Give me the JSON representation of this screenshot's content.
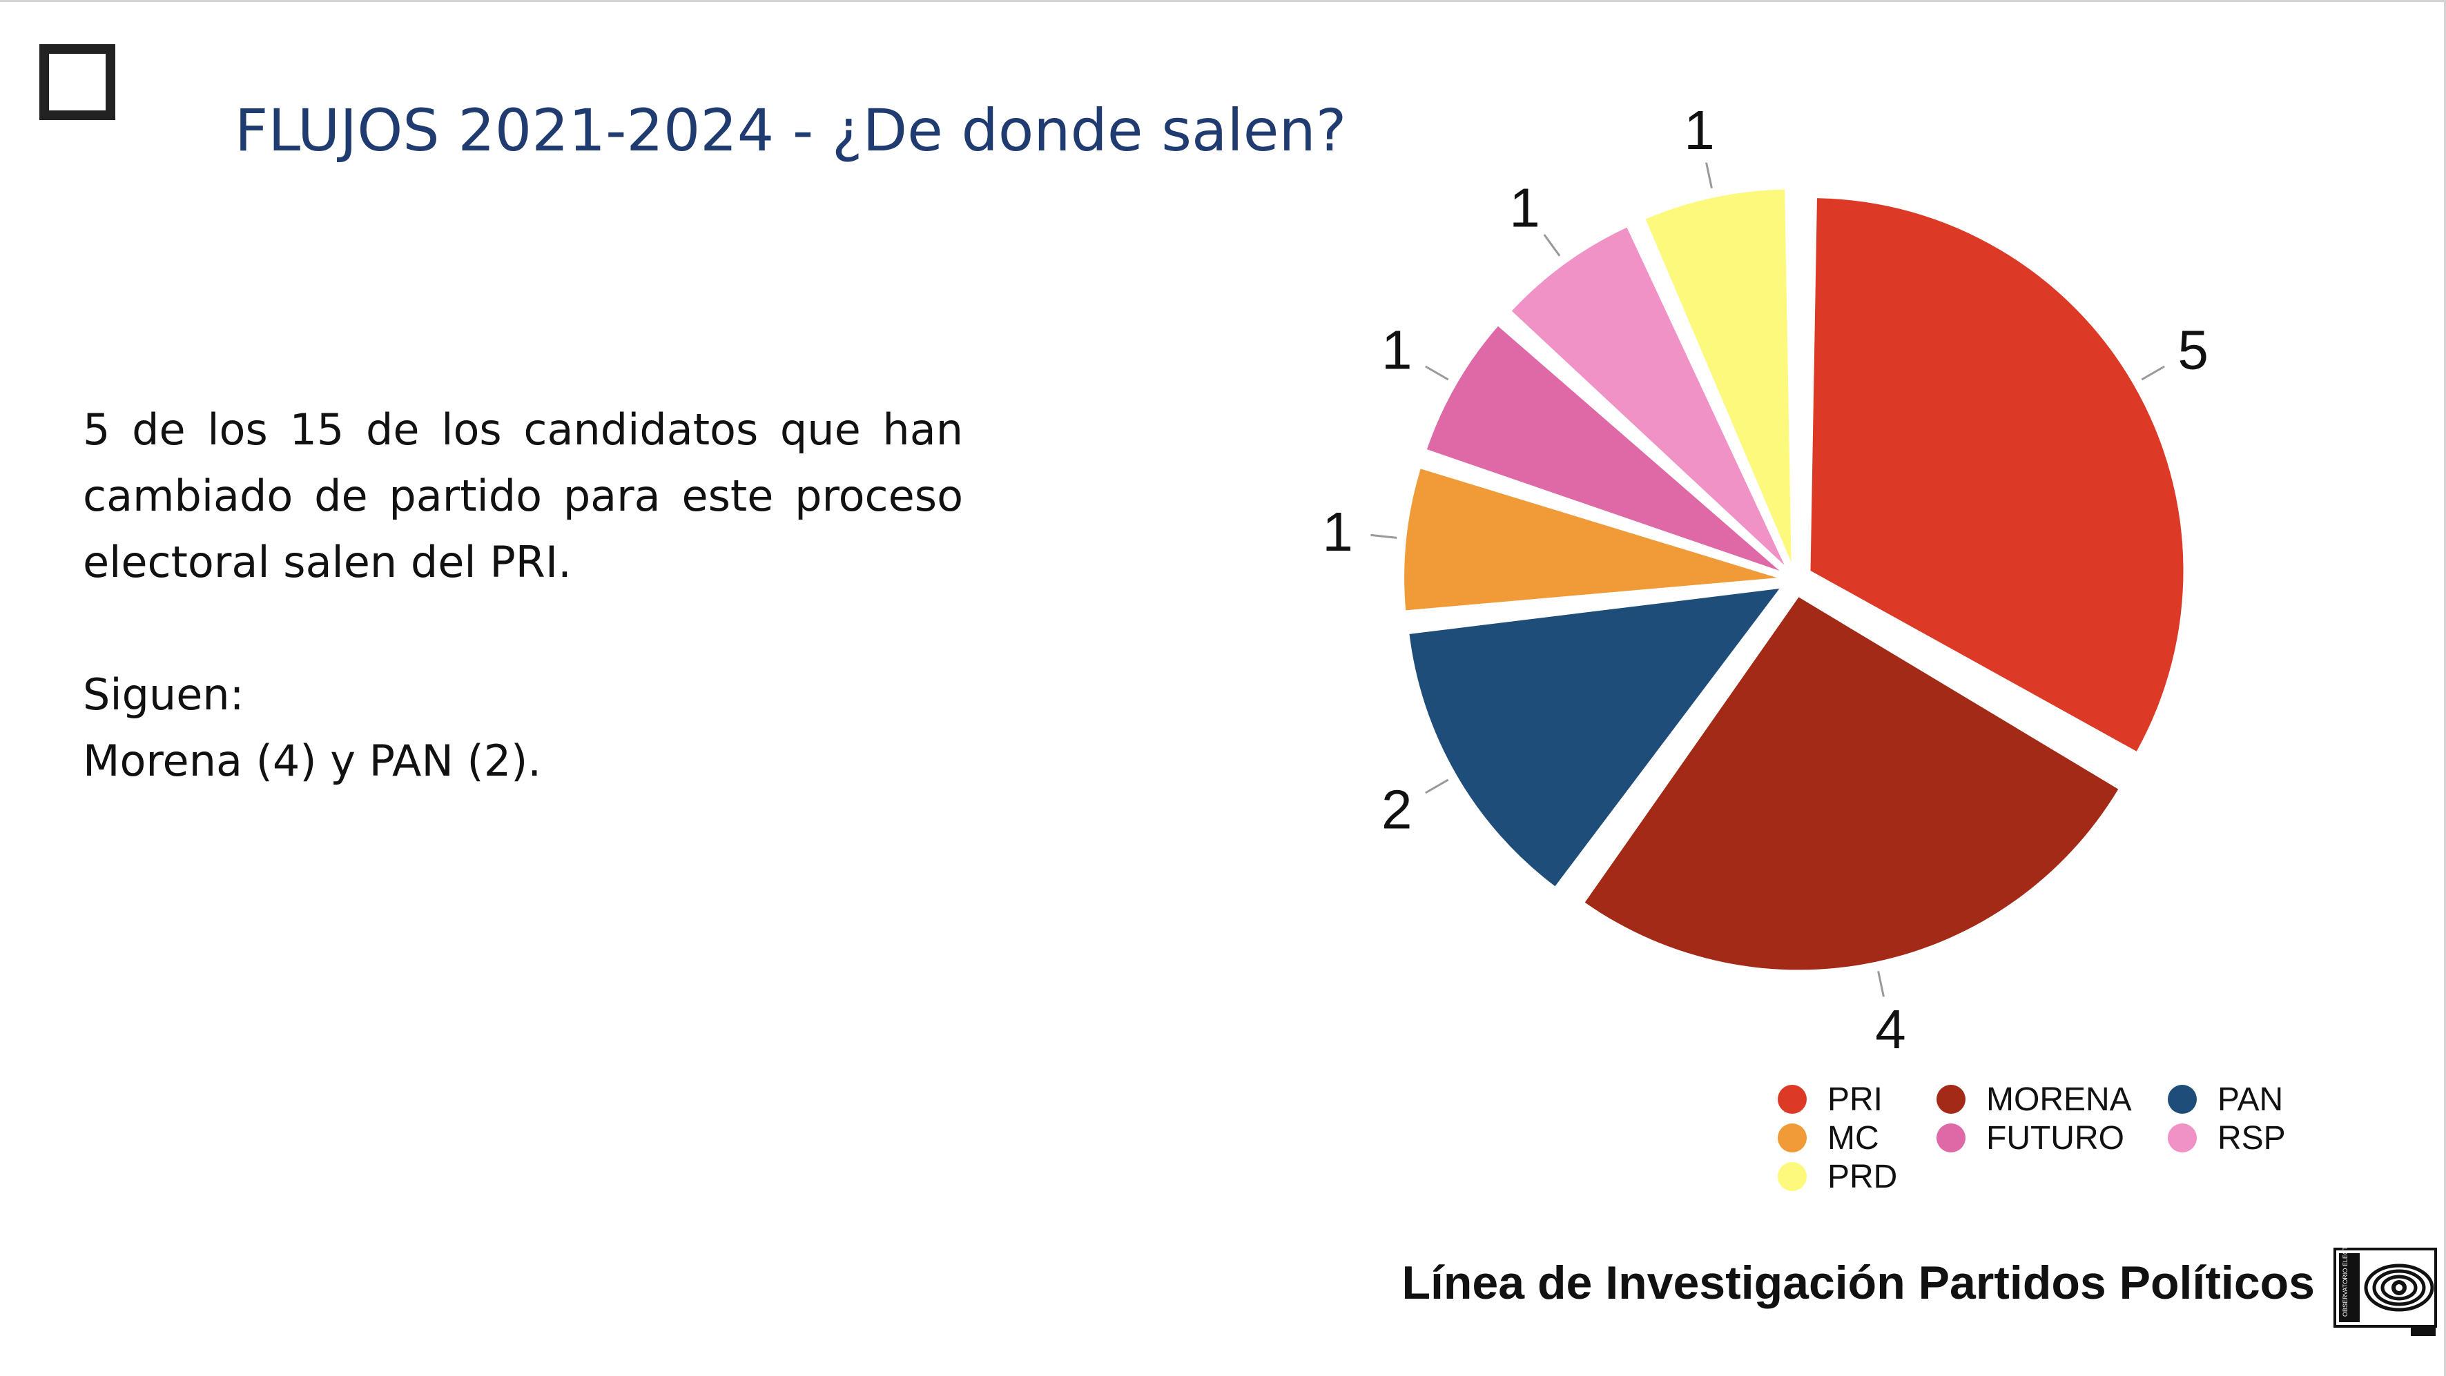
{
  "slide": {
    "title": "FLUJOS 2021-2024 - ¿De donde salen?",
    "paragraph1": "5 de los 15 de los candidatos que han cambiado de partido para este proceso electoral salen del PRI.",
    "paragraph2_line1": "Siguen:",
    "paragraph2_line2": "Morena (4) y PAN (2).",
    "footer": "Línea de Investigación Partidos Políticos"
  },
  "colors": {
    "title": "#1f3b70",
    "PRI": "#dc3a27",
    "MORENA": "#a42a18",
    "PAN": "#1f4d7a",
    "MC": "#f09a38",
    "FUTURO": "#df69a7",
    "RSP": "#f092c5",
    "PRD": "#fdf97d"
  },
  "chart_data": {
    "type": "pie",
    "title": "",
    "categories": [
      "PRI",
      "MORENA",
      "PAN",
      "MC",
      "FUTURO",
      "RSP",
      "PRD"
    ],
    "values": [
      5,
      4,
      2,
      1,
      1,
      1,
      1
    ],
    "exploded": true,
    "start": "12 o'clock, clockwise",
    "data_labels": [
      "5",
      "4",
      "2",
      "1",
      "1",
      "1",
      "1"
    ],
    "legend_placement": "bottom-right",
    "legend": [
      "PRI",
      "MORENA",
      "PAN",
      "MC",
      "FUTURO",
      "RSP",
      "PRD"
    ]
  },
  "logo": {
    "icon": "eye-spiral-logo",
    "text": "OBSERVATORIO ELECTORAL"
  }
}
